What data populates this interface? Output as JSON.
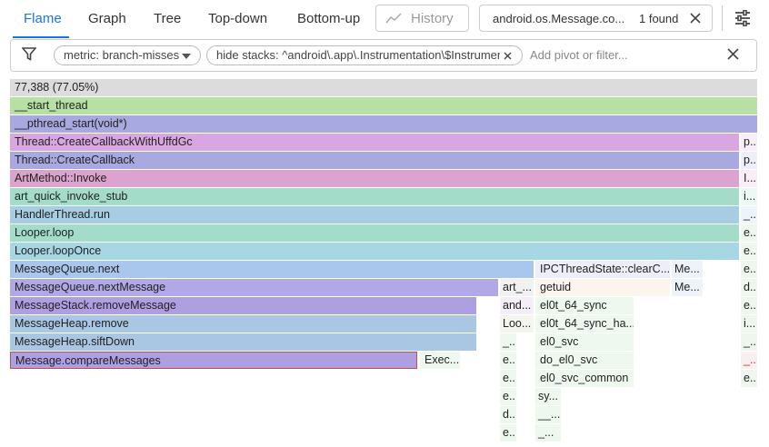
{
  "tabs": [
    "Flame",
    "Graph",
    "Tree",
    "Top-down",
    "Bottom-up"
  ],
  "history_button": "History",
  "search": {
    "query": "android.os.Message.co...",
    "result": "1 found"
  },
  "filters": {
    "chips": [
      "metric: branch-misses",
      "hide stacks: ^android\\.app\\.Instrumentation\\$Instrumentati"
    ],
    "placeholder": "Add pivot or filter..."
  },
  "flame": {
    "rows": [
      [
        "77,388 (77.05%)"
      ],
      [
        "__start_thread"
      ],
      [
        "__pthread_start(void*)"
      ],
      [
        "Thread::CreateCallbackWithUffdGc",
        "p..."
      ],
      [
        "Thread::CreateCallback",
        "p..."
      ],
      [
        "ArtMethod::Invoke",
        "I..."
      ],
      [
        "art_quick_invoke_stub",
        "i..."
      ],
      [
        "HandlerThread.run",
        "_..."
      ],
      [
        "Looper.loop",
        "e..."
      ],
      [
        "Looper.loopOnce",
        "e..."
      ],
      [
        "MessageQueue.next",
        "IPCThreadState::clearC...",
        "Me...",
        "e..."
      ],
      [
        "MessageQueue.nextMessage",
        "art_...",
        "getuid",
        "Me...",
        "d..."
      ],
      [
        "MessageStack.removeMessage",
        "and...",
        "el0t_64_sync",
        "e..."
      ],
      [
        "MessageHeap.remove",
        "Loo...",
        "el0t_64_sync_ha...",
        "i..."
      ],
      [
        "MessageHeap.siftDown",
        "_...",
        "el0_svc",
        "_..."
      ],
      [
        "Message.compareMessages",
        "Exec...",
        "e...",
        "do_el0_svc",
        "_..."
      ],
      [
        "e...",
        "el0_svc_common",
        "e..."
      ],
      [
        "e...",
        "sy..."
      ],
      [
        "d...",
        "__..."
      ],
      [
        "e...",
        "_..."
      ]
    ]
  }
}
